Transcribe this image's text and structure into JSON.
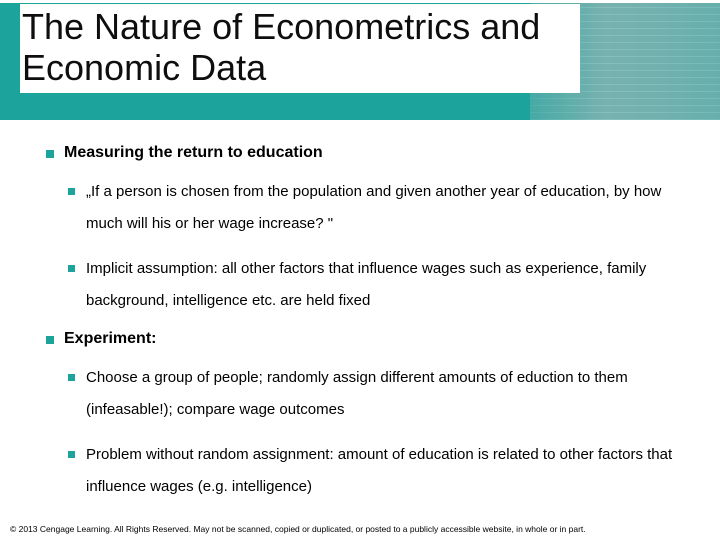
{
  "title": "The Nature of Econometrics and Economic Data",
  "sections": [
    {
      "label": "Measuring the return to education",
      "items": [
        "„If a person is chosen from the population and given another year of education, by how much will his or her wage increase? \"",
        "Implicit assumption: all other factors that influence wages such as experience, family background, intelligence etc. are held fixed"
      ]
    },
    {
      "label": "Experiment:",
      "items": [
        "Choose a group of people; randomly assign different amounts of eduction to them (infeasable!); compare wage outcomes",
        "Problem without random assignment: amount of education is related to other factors that influence wages (e.g. intelligence)"
      ]
    }
  ],
  "footer": "© 2013 Cengage Learning. All Rights Reserved. May not be scanned, copied or duplicated, or posted to a publicly accessible website, in whole or in part.",
  "colors": {
    "accent": "#1ba39c",
    "text": "#000000",
    "background": "#ffffff"
  }
}
